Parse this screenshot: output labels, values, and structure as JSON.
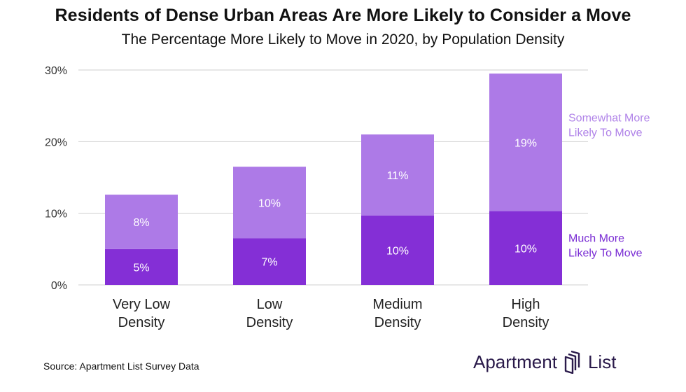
{
  "chart_data": {
    "type": "bar",
    "stacked": true,
    "title": "Residents of Dense Urban Areas Are More Likely to Consider a Move",
    "subtitle": "The Percentage More Likely to Move in 2020, by Population Density",
    "categories": [
      [
        "Very Low",
        "Density"
      ],
      [
        "Low",
        "Density"
      ],
      [
        "Medium",
        "Density"
      ],
      [
        "High",
        "Density"
      ]
    ],
    "series": [
      {
        "name": "Much More Likely To Move",
        "legend_lines": [
          "Much More",
          "Likely To Move"
        ],
        "values": [
          5,
          6.5,
          9.7,
          10.3
        ],
        "labels": [
          "5%",
          "7%",
          "10%",
          "10%"
        ],
        "color": "#842fd6",
        "legend_color": "#7a2dd4"
      },
      {
        "name": "Somewhat More Likely To Move",
        "legend_lines": [
          "Somewhat More",
          "Likely To Move"
        ],
        "values": [
          7.6,
          10.0,
          11.3,
          19.2
        ],
        "labels": [
          "8%",
          "10%",
          "11%",
          "19%"
        ],
        "color": "#ad7ae7",
        "legend_color": "#b083e8"
      }
    ],
    "ylim": [
      0,
      30
    ],
    "yticks": [
      0,
      10,
      20,
      30
    ],
    "ytick_labels": [
      "0%",
      "10%",
      "20%",
      "30%"
    ],
    "grid": true,
    "legend_placement": "right of bars"
  },
  "source": "Source: Apartment List Survey Data",
  "logo": {
    "word1": "Apartment",
    "word2": "List",
    "icon": "apartment-list-logo-icon"
  }
}
